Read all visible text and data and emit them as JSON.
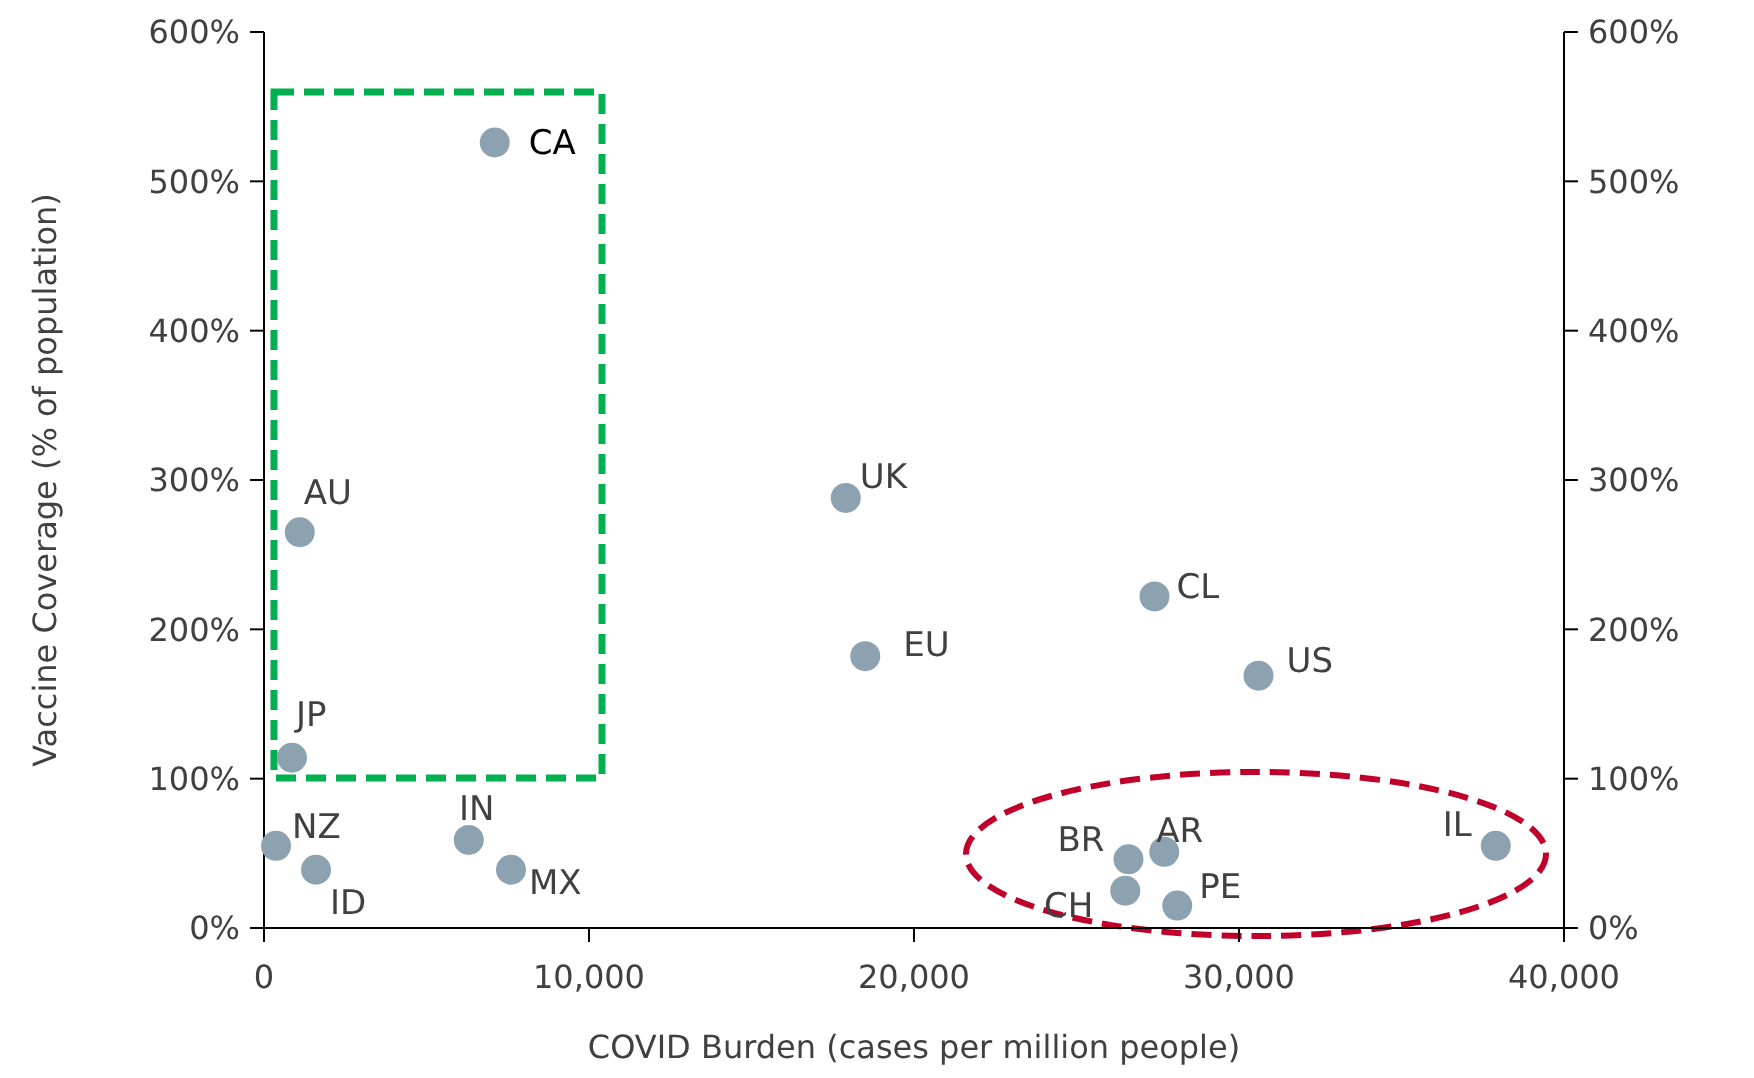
{
  "chart_data": {
    "type": "scatter",
    "xlabel": "COVID Burden (cases per million people)",
    "ylabel": "Vaccine Coverage (% of population)",
    "xlim": [
      0,
      40000
    ],
    "xticks": [
      0,
      {
        "value": 10000,
        "label": "10,000"
      },
      {
        "value": 20000,
        "label": "20,000"
      },
      {
        "value": 30000,
        "label": "30,000"
      },
      {
        "value": 40000,
        "label": "40,000"
      }
    ],
    "ylim": [
      0,
      600
    ],
    "yticks": [
      {
        "value": 0,
        "label": "0%"
      },
      {
        "value": 100,
        "label": "100%"
      },
      {
        "value": 200,
        "label": "200%"
      },
      {
        "value": 300,
        "label": "300%"
      },
      {
        "value": 400,
        "label": "400%"
      },
      {
        "value": 500,
        "label": "500%"
      },
      {
        "value": 600,
        "label": "600%"
      }
    ],
    "y2lim": [
      0,
      600
    ],
    "y2ticks": [
      {
        "value": 0,
        "label": "0%"
      },
      {
        "value": 100,
        "label": "100%"
      },
      {
        "value": 200,
        "label": "200%"
      },
      {
        "value": 300,
        "label": "300%"
      },
      {
        "value": 400,
        "label": "400%"
      },
      {
        "value": 500,
        "label": "500%"
      },
      {
        "value": 600,
        "label": "600%"
      }
    ],
    "marker": "circle",
    "grid": false,
    "series": [
      {
        "color": "#8da2b0",
        "x": [
          7100,
          1100,
          860,
          370,
          1600,
          6300,
          7600,
          17900,
          18500,
          27400,
          30600,
          26600,
          27700,
          26500,
          28100,
          37900
        ],
        "values": [
          526,
          265,
          114,
          55,
          39,
          59,
          39,
          288,
          182,
          222,
          169,
          46,
          51,
          25,
          15,
          55
        ]
      }
    ],
    "annotations": [
      {
        "text": "CA",
        "x": 7100,
        "y": 526
      },
      {
        "text": "AU",
        "x": 1100,
        "y": 265
      },
      {
        "text": "JP",
        "x": 860,
        "y": 114
      },
      {
        "text": "NZ",
        "x": 370,
        "y": 55
      },
      {
        "text": "ID",
        "x": 1600,
        "y": 39
      },
      {
        "text": "IN",
        "x": 6300,
        "y": 59
      },
      {
        "text": "MX",
        "x": 7600,
        "y": 39
      },
      {
        "text": "UK",
        "x": 17900,
        "y": 288
      },
      {
        "text": "EU",
        "x": 18500,
        "y": 182
      },
      {
        "text": "CL",
        "x": 27400,
        "y": 222
      },
      {
        "text": "US",
        "x": 30600,
        "y": 169
      },
      {
        "text": "BR",
        "x": 26600,
        "y": 46
      },
      {
        "text": "AR",
        "x": 27700,
        "y": 51
      },
      {
        "text": "CH",
        "x": 26500,
        "y": 25
      },
      {
        "text": "PE",
        "x": 28100,
        "y": 15
      },
      {
        "text": "IL",
        "x": 37900,
        "y": 55
      }
    ]
  }
}
